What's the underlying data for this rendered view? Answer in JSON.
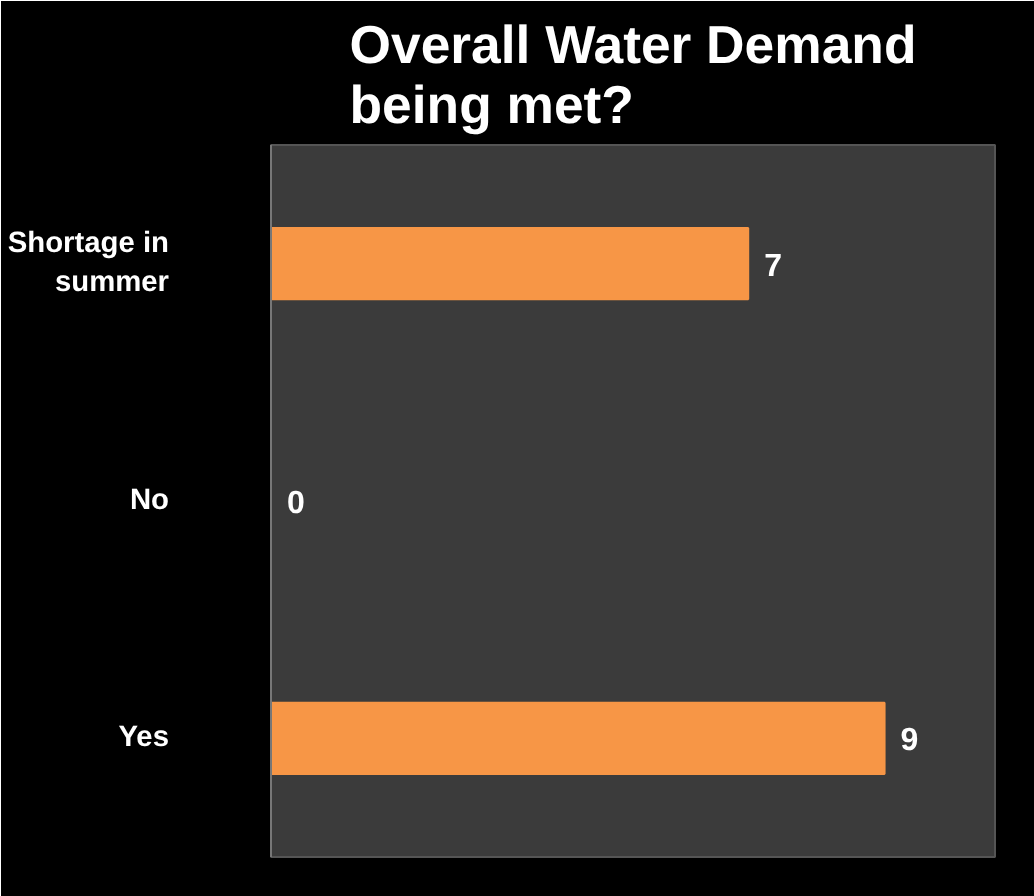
{
  "chart_data": {
    "type": "bar",
    "orientation": "horizontal",
    "title": "Overall Water Demand being met?",
    "categories": [
      "Shortage in summer",
      "No",
      "Yes"
    ],
    "values": [
      7,
      0,
      9
    ],
    "color": "#f79646",
    "data_labels": true,
    "grid": false
  }
}
